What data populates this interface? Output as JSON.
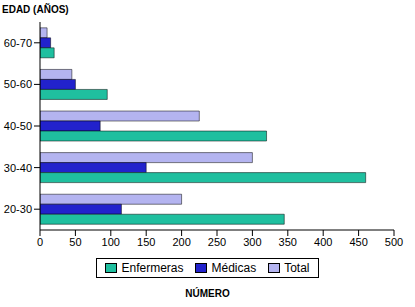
{
  "chart_data": {
    "type": "bar",
    "orientation": "horizontal",
    "y_label": "EDAD (AÑOS)",
    "x_label": "NÚMERO",
    "categories": [
      "20-30",
      "30-40",
      "40-50",
      "50-60",
      "60-70"
    ],
    "series": [
      {
        "name": "Enfermeras",
        "color": "#1fbf9f",
        "values": [
          345,
          460,
          320,
          95,
          20
        ]
      },
      {
        "name": "Médicas",
        "color": "#2222cc",
        "values": [
          115,
          150,
          85,
          50,
          15
        ]
      },
      {
        "name": "Total",
        "color": "#b4b4f0",
        "values": [
          200,
          300,
          225,
          45,
          10
        ]
      }
    ],
    "xlim": [
      0,
      500
    ],
    "xticks": [
      0,
      50,
      100,
      150,
      200,
      250,
      300,
      350,
      400,
      450,
      500
    ],
    "grid": false,
    "legend": "bottom"
  }
}
